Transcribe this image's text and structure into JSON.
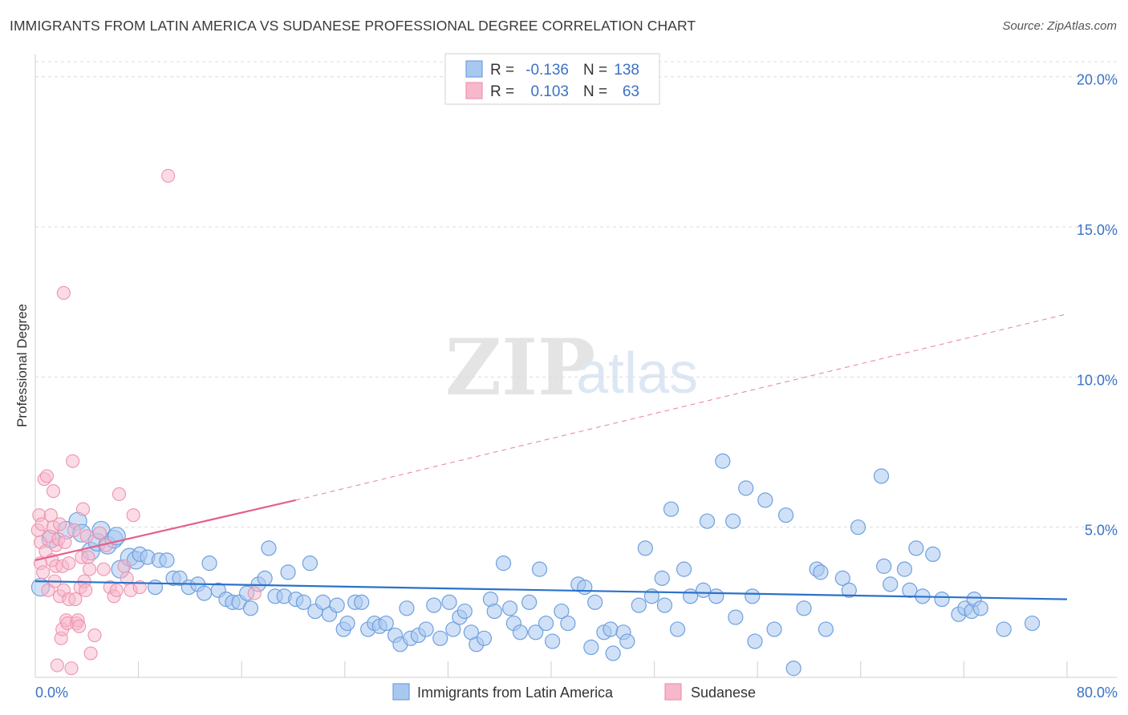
{
  "title": "IMMIGRANTS FROM LATIN AMERICA VS SUDANESE PROFESSIONAL DEGREE CORRELATION CHART",
  "source": "Source: ZipAtlas.com",
  "watermark": {
    "zip": "ZIP",
    "atlas": "atlas"
  },
  "colors": {
    "blue_fill": "#a9c8f0",
    "blue_stroke": "#6fa0de",
    "blue_line": "#2b72c9",
    "pink_fill": "#f7b8cb",
    "pink_stroke": "#ee93ae",
    "pink_line": "#e4608a",
    "axis_text": "#3a72c4",
    "grid": "#dcdcdc"
  },
  "legend": {
    "rows": [
      {
        "r_label": "R =",
        "r_value": "-0.136",
        "n_label": "N =",
        "n_value": "138"
      },
      {
        "r_label": "R =",
        "r_value": "0.103",
        "n_label": "N =",
        "n_value": "63"
      }
    ]
  },
  "chart_data": {
    "type": "scatter",
    "xlabel": "",
    "ylabel": "Professional Degree",
    "xlim": [
      0,
      80
    ],
    "ylim": [
      0,
      20.5
    ],
    "x_tick_labels": [
      "0.0%",
      "80.0%"
    ],
    "y_tick_labels": [
      "5.0%",
      "10.0%",
      "15.0%",
      "20.0%"
    ],
    "y_ticks": [
      5,
      10,
      15,
      20
    ],
    "grid": true,
    "legend_position": "bottom-center",
    "series": [
      {
        "name": "Immigrants from Latin America",
        "color": "#a9c8f0",
        "trend": {
          "x0": 0,
          "y0": 3.2,
          "x1": 80,
          "y1": 2.6,
          "style": "solid"
        },
        "points": [
          [
            0.4,
            3.0
          ],
          [
            1.2,
            4.6
          ],
          [
            2.4,
            4.9
          ],
          [
            3.3,
            5.2
          ],
          [
            3.6,
            4.8
          ],
          [
            4.3,
            4.2
          ],
          [
            4.8,
            4.5
          ],
          [
            5.1,
            4.9
          ],
          [
            5.6,
            4.4
          ],
          [
            6.1,
            4.6
          ],
          [
            6.3,
            4.7
          ],
          [
            6.6,
            3.6
          ],
          [
            7.3,
            4.0
          ],
          [
            7.8,
            3.9
          ],
          [
            8.1,
            4.1
          ],
          [
            8.7,
            4.0
          ],
          [
            9.3,
            3.0
          ],
          [
            9.6,
            3.9
          ],
          [
            10.2,
            3.9
          ],
          [
            10.7,
            3.3
          ],
          [
            11.2,
            3.3
          ],
          [
            11.9,
            3.0
          ],
          [
            12.6,
            3.1
          ],
          [
            13.1,
            2.8
          ],
          [
            13.5,
            3.8
          ],
          [
            14.2,
            2.9
          ],
          [
            14.8,
            2.6
          ],
          [
            15.3,
            2.5
          ],
          [
            15.8,
            2.5
          ],
          [
            16.4,
            2.8
          ],
          [
            16.7,
            2.3
          ],
          [
            17.3,
            3.1
          ],
          [
            17.8,
            3.3
          ],
          [
            18.1,
            4.3
          ],
          [
            18.6,
            2.7
          ],
          [
            19.3,
            2.7
          ],
          [
            19.6,
            3.5
          ],
          [
            20.2,
            2.6
          ],
          [
            20.8,
            2.5
          ],
          [
            21.3,
            3.8
          ],
          [
            21.7,
            2.2
          ],
          [
            22.3,
            2.5
          ],
          [
            22.8,
            2.1
          ],
          [
            23.4,
            2.4
          ],
          [
            23.9,
            1.6
          ],
          [
            24.2,
            1.8
          ],
          [
            24.8,
            2.5
          ],
          [
            25.3,
            2.5
          ],
          [
            25.8,
            1.6
          ],
          [
            26.3,
            1.8
          ],
          [
            26.7,
            1.7
          ],
          [
            27.2,
            1.8
          ],
          [
            27.9,
            1.4
          ],
          [
            28.3,
            1.1
          ],
          [
            28.8,
            2.3
          ],
          [
            29.1,
            1.3
          ],
          [
            29.7,
            1.4
          ],
          [
            30.3,
            1.6
          ],
          [
            30.9,
            2.4
          ],
          [
            31.4,
            1.3
          ],
          [
            32.1,
            2.5
          ],
          [
            32.4,
            1.6
          ],
          [
            32.9,
            2.0
          ],
          [
            33.3,
            2.2
          ],
          [
            33.8,
            1.5
          ],
          [
            34.2,
            1.1
          ],
          [
            34.8,
            1.3
          ],
          [
            35.3,
            2.6
          ],
          [
            35.6,
            2.2
          ],
          [
            36.3,
            3.8
          ],
          [
            36.8,
            2.3
          ],
          [
            37.1,
            1.8
          ],
          [
            37.6,
            1.5
          ],
          [
            38.3,
            2.5
          ],
          [
            38.8,
            1.5
          ],
          [
            39.1,
            3.6
          ],
          [
            39.6,
            1.8
          ],
          [
            40.1,
            1.2
          ],
          [
            40.8,
            2.2
          ],
          [
            41.3,
            1.8
          ],
          [
            42.1,
            3.1
          ],
          [
            42.6,
            3.0
          ],
          [
            43.1,
            1.0
          ],
          [
            43.4,
            2.5
          ],
          [
            44.1,
            1.5
          ],
          [
            44.6,
            1.6
          ],
          [
            44.8,
            0.8
          ],
          [
            45.6,
            1.5
          ],
          [
            45.9,
            1.2
          ],
          [
            46.8,
            2.4
          ],
          [
            47.3,
            4.3
          ],
          [
            47.8,
            2.7
          ],
          [
            48.6,
            3.3
          ],
          [
            48.8,
            2.4
          ],
          [
            49.3,
            5.6
          ],
          [
            49.8,
            1.6
          ],
          [
            50.3,
            3.6
          ],
          [
            50.8,
            2.7
          ],
          [
            51.8,
            2.9
          ],
          [
            52.1,
            5.2
          ],
          [
            52.8,
            2.7
          ],
          [
            53.3,
            7.2
          ],
          [
            54.1,
            5.2
          ],
          [
            54.3,
            2.0
          ],
          [
            55.1,
            6.3
          ],
          [
            55.6,
            2.7
          ],
          [
            55.8,
            1.2
          ],
          [
            56.6,
            5.9
          ],
          [
            57.3,
            1.6
          ],
          [
            58.2,
            5.4
          ],
          [
            58.8,
            0.3
          ],
          [
            59.6,
            2.3
          ],
          [
            60.6,
            3.6
          ],
          [
            60.9,
            3.5
          ],
          [
            61.3,
            1.6
          ],
          [
            62.6,
            3.3
          ],
          [
            63.1,
            2.9
          ],
          [
            63.8,
            5.0
          ],
          [
            65.6,
            6.7
          ],
          [
            65.8,
            3.7
          ],
          [
            66.3,
            3.1
          ],
          [
            67.4,
            3.6
          ],
          [
            67.8,
            2.9
          ],
          [
            68.3,
            4.3
          ],
          [
            68.8,
            2.7
          ],
          [
            69.6,
            4.1
          ],
          [
            70.3,
            2.6
          ],
          [
            71.6,
            2.1
          ],
          [
            72.1,
            2.3
          ],
          [
            72.6,
            2.2
          ],
          [
            72.8,
            2.6
          ],
          [
            73.3,
            2.3
          ],
          [
            75.1,
            1.6
          ],
          [
            77.3,
            1.8
          ]
        ]
      },
      {
        "name": "Sudanese",
        "color": "#f7b8cb",
        "trend": {
          "x0": 0,
          "y0": 3.9,
          "x1": 20.2,
          "y1": 5.9,
          "x2": 80,
          "y2": 12.1,
          "style": "solid-then-dashed"
        },
        "points": [
          [
            0.2,
            4.9
          ],
          [
            0.3,
            5.4
          ],
          [
            0.4,
            4.5
          ],
          [
            0.4,
            3.8
          ],
          [
            0.5,
            5.1
          ],
          [
            0.6,
            3.5
          ],
          [
            0.7,
            6.6
          ],
          [
            0.8,
            4.2
          ],
          [
            0.9,
            6.7
          ],
          [
            1.0,
            2.9
          ],
          [
            1.1,
            4.7
          ],
          [
            1.2,
            5.4
          ],
          [
            1.3,
            3.9
          ],
          [
            1.4,
            6.2
          ],
          [
            1.4,
            5.0
          ],
          [
            1.5,
            3.2
          ],
          [
            1.6,
            4.4
          ],
          [
            1.6,
            3.7
          ],
          [
            1.7,
            0.4
          ],
          [
            1.8,
            4.6
          ],
          [
            1.9,
            2.7
          ],
          [
            1.9,
            5.1
          ],
          [
            2.0,
            1.3
          ],
          [
            2.1,
            3.7
          ],
          [
            2.1,
            1.6
          ],
          [
            2.2,
            12.8
          ],
          [
            2.2,
            2.9
          ],
          [
            2.3,
            4.5
          ],
          [
            2.4,
            1.9
          ],
          [
            2.5,
            1.8
          ],
          [
            2.6,
            2.6
          ],
          [
            2.6,
            3.8
          ],
          [
            2.8,
            0.3
          ],
          [
            2.9,
            7.2
          ],
          [
            3.0,
            4.9
          ],
          [
            3.1,
            2.6
          ],
          [
            3.2,
            1.8
          ],
          [
            3.3,
            1.9
          ],
          [
            3.4,
            1.7
          ],
          [
            3.5,
            3.0
          ],
          [
            3.6,
            4.0
          ],
          [
            3.7,
            5.6
          ],
          [
            3.8,
            3.2
          ],
          [
            3.9,
            2.9
          ],
          [
            4.0,
            4.7
          ],
          [
            4.1,
            4.0
          ],
          [
            4.2,
            3.6
          ],
          [
            4.3,
            0.8
          ],
          [
            4.6,
            1.4
          ],
          [
            5.0,
            4.8
          ],
          [
            5.3,
            3.6
          ],
          [
            5.5,
            4.4
          ],
          [
            5.8,
            3.0
          ],
          [
            6.1,
            2.7
          ],
          [
            6.3,
            2.9
          ],
          [
            6.5,
            6.1
          ],
          [
            6.9,
            3.7
          ],
          [
            7.1,
            3.3
          ],
          [
            7.4,
            2.9
          ],
          [
            7.6,
            5.4
          ],
          [
            8.1,
            3.0
          ],
          [
            10.3,
            16.7
          ],
          [
            17.0,
            2.8
          ]
        ]
      }
    ]
  }
}
